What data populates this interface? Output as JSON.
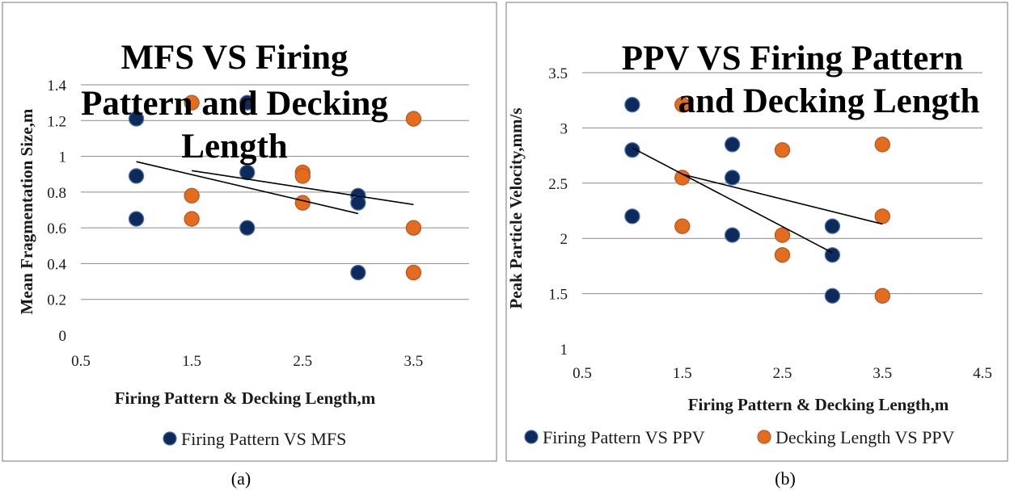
{
  "chart_data": [
    {
      "type": "scatter",
      "title_lines": [
        "MFS VS Firing",
        "Pattern and Decking",
        "Length"
      ],
      "xlabel": "Firing Pattern & Decking Length,m",
      "ylabel": "Mean Fragmentation Size,m",
      "xlim": [
        0.5,
        4.0
      ],
      "ylim": [
        0,
        1.4
      ],
      "xticks": [
        "0.5",
        "1.5",
        "2.5",
        "3.5"
      ],
      "yticks": [
        "0",
        "0.2",
        "0.4",
        "0.6",
        "0.8",
        "1",
        "1.2",
        "1.4"
      ],
      "grid": "horizontal",
      "legend_position": "bottom",
      "legend": [
        "Firing Pattern VS MFS"
      ],
      "caption": "(a)",
      "series": [
        {
          "name": "Firing Pattern VS MFS",
          "color": "#0d2a5c",
          "points": [
            [
              1,
              1.21
            ],
            [
              1,
              0.89
            ],
            [
              1,
              0.65
            ],
            [
              2,
              1.3
            ],
            [
              2,
              0.91
            ],
            [
              2,
              0.6
            ],
            [
              3,
              0.78
            ],
            [
              3,
              0.74
            ],
            [
              3,
              0.35
            ]
          ],
          "trendline": [
            [
              1,
              0.97
            ],
            [
              3,
              0.68
            ]
          ]
        },
        {
          "color": "#e36c1d",
          "points": [
            [
              1.5,
              1.3
            ],
            [
              1.5,
              0.78
            ],
            [
              1.5,
              0.65
            ],
            [
              2.5,
              0.91
            ],
            [
              2.5,
              0.89
            ],
            [
              2.5,
              0.74
            ],
            [
              3.5,
              1.21
            ],
            [
              3.5,
              0.6
            ],
            [
              3.5,
              0.35
            ]
          ],
          "trendline": [
            [
              1.5,
              0.92
            ],
            [
              3.5,
              0.73
            ]
          ]
        }
      ]
    },
    {
      "type": "scatter",
      "title_lines": [
        "PPV VS Firing Pattern",
        "and Decking Length"
      ],
      "xlabel": "Firing Pattern & Decking Length,m",
      "ylabel": "Peak Particle Velocity,mm/s",
      "xlim": [
        0.5,
        4.5
      ],
      "ylim": [
        1,
        3.5
      ],
      "xticks": [
        "0.5",
        "1.5",
        "2.5",
        "3.5",
        "4.5"
      ],
      "yticks": [
        "1",
        "1.5",
        "2",
        "2.5",
        "3",
        "3.5"
      ],
      "grid": "horizontal",
      "legend_position": "bottom",
      "legend": [
        "Firing Pattern VS PPV",
        "Decking Length VS PPV"
      ],
      "caption": "(b)",
      "series": [
        {
          "name": "Firing Pattern VS PPV",
          "color": "#0d2a5c",
          "points": [
            [
              1,
              3.21
            ],
            [
              1,
              2.8
            ],
            [
              1,
              2.2
            ],
            [
              2,
              2.85
            ],
            [
              2,
              2.55
            ],
            [
              2,
              2.03
            ],
            [
              3,
              2.11
            ],
            [
              3,
              1.85
            ],
            [
              3,
              1.48
            ]
          ],
          "trendline": [
            [
              1,
              2.82
            ],
            [
              3,
              1.87
            ]
          ]
        },
        {
          "name": "Decking Length VS PPV",
          "color": "#e36c1d",
          "points": [
            [
              1.5,
              3.21
            ],
            [
              1.5,
              2.55
            ],
            [
              1.5,
              2.11
            ],
            [
              2.5,
              2.8
            ],
            [
              2.5,
              2.03
            ],
            [
              2.5,
              1.85
            ],
            [
              3.5,
              2.85
            ],
            [
              3.5,
              2.2
            ],
            [
              3.5,
              1.48
            ]
          ],
          "trendline": [
            [
              1.5,
              2.58
            ],
            [
              3.5,
              2.13
            ]
          ]
        }
      ]
    }
  ]
}
